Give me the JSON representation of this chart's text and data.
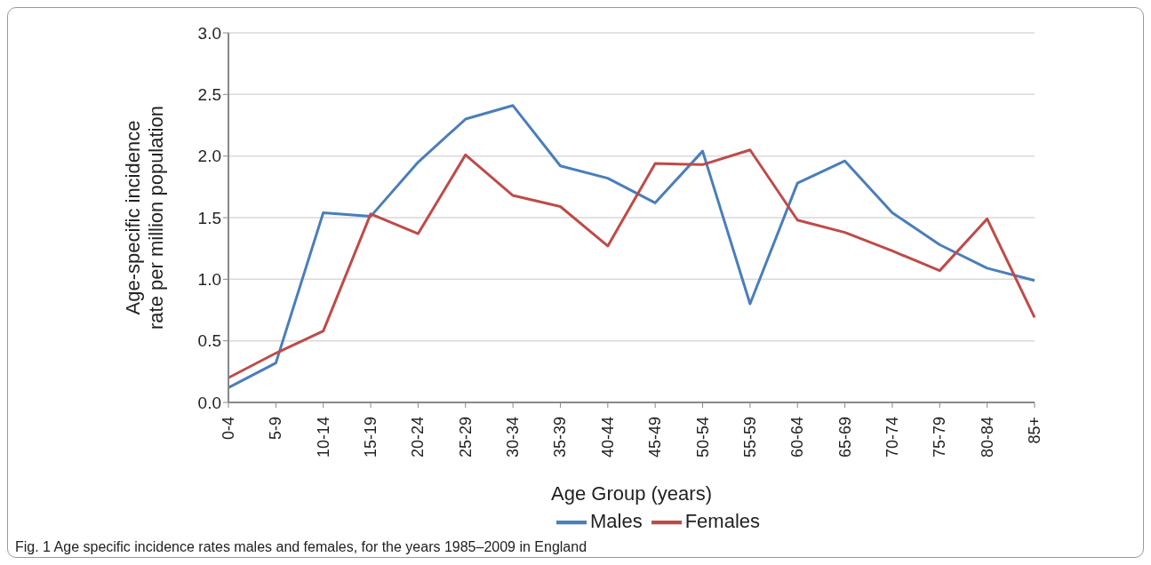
{
  "chart_data": {
    "type": "line",
    "xlabel": "Age Group (years)",
    "ylabel": "Age-specific incidence rate per million population",
    "annotations": [
      "Fig. 1  Age specific incidence rates males and females, for the years 1985–2009 in England"
    ],
    "categories": [
      "0-4",
      "5-9",
      "10-14",
      "15-19",
      "20-24",
      "25-29",
      "30-34",
      "35-39",
      "40-44",
      "45-49",
      "50-54",
      "55-59",
      "60-64",
      "65-69",
      "70-74",
      "75-79",
      "80-84",
      "85+"
    ],
    "series": [
      {
        "name": "Males",
        "color": "#4a7ebb",
        "values": [
          0.12,
          0.32,
          1.54,
          1.51,
          1.95,
          2.3,
          2.41,
          1.92,
          1.82,
          1.62,
          2.04,
          0.8,
          1.78,
          1.96,
          1.54,
          1.28,
          1.09,
          0.99
        ]
      },
      {
        "name": "Females",
        "color": "#be4b48",
        "values": [
          0.2,
          0.4,
          0.58,
          1.53,
          1.37,
          2.01,
          1.68,
          1.59,
          1.27,
          1.94,
          1.93,
          2.05,
          1.48,
          1.38,
          1.23,
          1.07,
          1.49,
          0.69
        ]
      }
    ],
    "ylim": [
      0,
      3
    ],
    "yticks": [
      {
        "value": 0,
        "label": "0.0"
      },
      {
        "value": 0.5,
        "label": "0.5"
      },
      {
        "value": 1,
        "label": "1.0"
      },
      {
        "value": 1.5,
        "label": "1.5"
      },
      {
        "value": 2,
        "label": "2.0"
      },
      {
        "value": 2.5,
        "label": "2.5"
      },
      {
        "value": 3,
        "label": "3.0"
      }
    ],
    "grid": "y",
    "legend": "bottom",
    "marker": "none",
    "line_style": "solid"
  }
}
